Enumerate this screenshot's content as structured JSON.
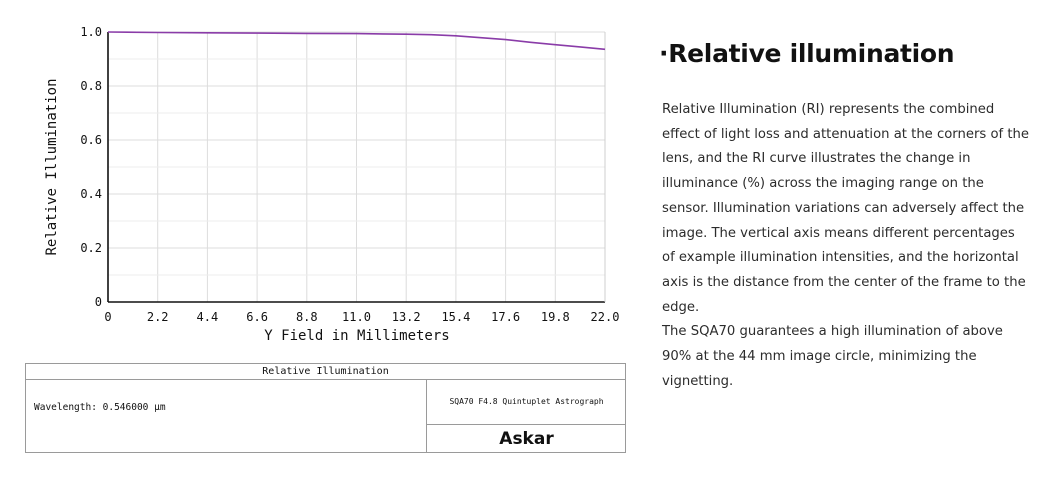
{
  "chart_data": {
    "type": "line",
    "xlabel": "Y Field in Millimeters",
    "ylabel": "Relative Illumination",
    "xlim": [
      0,
      22.0
    ],
    "ylim": [
      0,
      1.0
    ],
    "x_ticks": [
      "0",
      "2.2",
      "4.4",
      "6.6",
      "8.8",
      "11.0",
      "13.2",
      "15.4",
      "17.6",
      "19.8",
      "22.0"
    ],
    "y_ticks": [
      "0",
      "0.2",
      "0.4",
      "0.6",
      "0.8",
      "1.0"
    ],
    "grid": true,
    "series": [
      {
        "color": "#8a3ca8",
        "x": [
          0,
          2.2,
          4.4,
          6.6,
          8.8,
          11.0,
          13.2,
          14.3,
          15.4,
          16.5,
          17.6,
          18.7,
          19.8,
          20.9,
          22.0
        ],
        "y": [
          1.0,
          0.998,
          0.997,
          0.996,
          0.995,
          0.994,
          0.992,
          0.99,
          0.986,
          0.979,
          0.972,
          0.962,
          0.953,
          0.945,
          0.936
        ]
      }
    ]
  },
  "info_table": {
    "title": "Relative Illumination",
    "wavelength": "Wavelength: 0.546000 µm",
    "lens_name": "SQA70 F4.8 Quintuplet Astrograph",
    "brand": "Askar"
  },
  "text_panel": {
    "heading": "·Relative illumination",
    "paragraph1": "Relative Illumination (RI) represents the combined effect of light loss and attenuation at the corners of the lens, and the RI curve illustrates the change in illuminance (%) across the imaging range on the sensor. Illumination variations can adversely affect the image. The vertical axis means different percentages of example illumination intensities, and the horizontal axis is the distance from the center of the frame to the edge.",
    "paragraph2": "The SQA70 guarantees a high illumination of above 90% at the 44 mm image circle, minimizing the vignetting."
  }
}
